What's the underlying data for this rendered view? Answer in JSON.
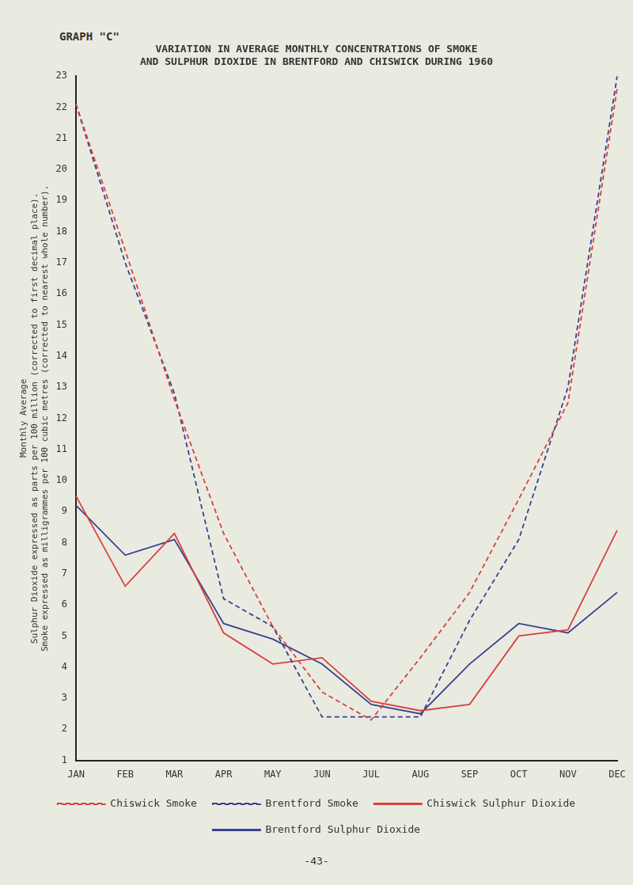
{
  "graph_label": "GRAPH \"C\"",
  "page_number": "-43-",
  "chart_data": {
    "type": "line",
    "title": [
      "VARIATION IN AVERAGE MONTHLY CONCENTRATIONS OF SMOKE",
      "AND SULPHUR DIOXIDE IN BRENTFORD AND CHISWICK DURING 1960"
    ],
    "y_label": [
      "Monthly Average",
      "Sulphur Dioxide expressed as parts per 100 million (corrected to first decimal place).",
      "Smoke expressed as milligrammes per 100 cubic metres (corrected to nearest whole number)."
    ],
    "categories": [
      "JAN",
      "FEB",
      "MAR",
      "APR",
      "MAY",
      "JUN",
      "JUL",
      "AUG",
      "SEP",
      "OCT",
      "NOV",
      "DEC"
    ],
    "series": [
      {
        "name": "Chiswick Smoke",
        "color": "#d8413c",
        "line_style": "dashed",
        "values": [
          22.1,
          17.4,
          12.6,
          8.3,
          5.3,
          3.2,
          2.3,
          4.3,
          6.4,
          9.4,
          12.5,
          22.6
        ]
      },
      {
        "name": "Brentford Smoke",
        "color": "#3b3f91",
        "line_style": "dashed",
        "values": [
          22.1,
          17.0,
          12.8,
          6.2,
          5.3,
          2.4,
          2.4,
          2.4,
          5.5,
          8.1,
          13.0,
          23.0
        ]
      },
      {
        "name": "Chiswick Sulphur Dioxide",
        "color": "#d8413c",
        "line_style": "solid",
        "values": [
          9.5,
          6.6,
          8.3,
          5.1,
          4.1,
          4.3,
          2.9,
          2.6,
          2.8,
          5.0,
          5.2,
          8.4
        ]
      },
      {
        "name": "Brentford Sulphur Dioxide",
        "color": "#3b3f91",
        "line_style": "solid",
        "values": [
          9.2,
          7.6,
          8.1,
          5.4,
          4.9,
          4.1,
          2.8,
          2.5,
          4.1,
          5.4,
          5.1,
          6.4
        ]
      }
    ],
    "ylim": [
      1,
      23
    ],
    "yticks": [
      1,
      2,
      3,
      4,
      5,
      6,
      7,
      8,
      9,
      10,
      11,
      12,
      13,
      14,
      15,
      16,
      17,
      18,
      19,
      20,
      21,
      22,
      23
    ],
    "grid": false,
    "legend": "bottom"
  }
}
